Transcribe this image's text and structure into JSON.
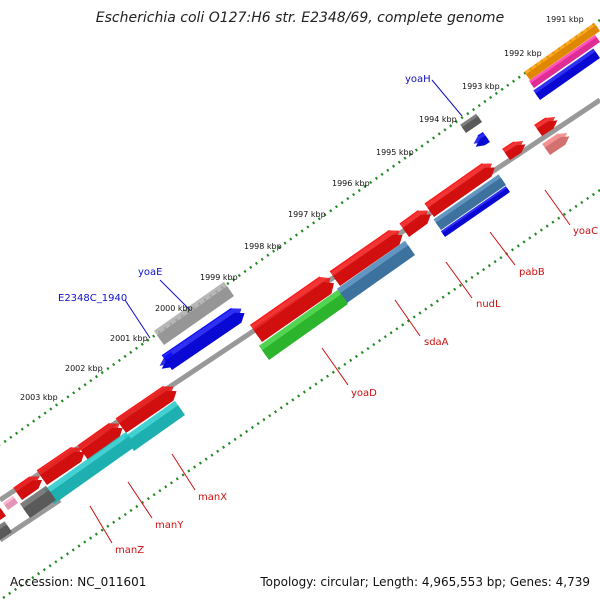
{
  "title": "Escherichia coli O127:H6 str. E2348/69, complete genome",
  "ticks": [
    "1991 kbp",
    "1992 kbp",
    "1993 kbp",
    "1994 kbp",
    "1995 kbp",
    "1996 kbp",
    "1997 kbp",
    "1998 kbp",
    "1999 kbp",
    "2000 kbp",
    "2001 kbp",
    "2002 kbp",
    "2003 kbp"
  ],
  "gene_labels": {
    "yoaH": "yoaH",
    "yoaE": "yoaE",
    "e2348c_1940": "E2348C_1940",
    "yoaC": "yoaC",
    "pabB": "pabB",
    "nudL": "nudL",
    "sdaA": "sdaA",
    "yoaD": "yoaD",
    "manX": "manX",
    "manY": "manY",
    "manZ": "manZ"
  },
  "colors": {
    "plus_strand_label": "#1010cc",
    "minus_strand_label": "#cc1010",
    "red": "#ee1111",
    "blue": "#0a0af0",
    "cyan": "#22c8c8",
    "green": "#33cc33",
    "steel": "#4682b4",
    "gray": "#aaaaaa",
    "darkgray": "#666666",
    "orange": "#ff9900",
    "magenta": "#ff33aa",
    "pink": "#ffaacc",
    "salmon": "#f08080",
    "backbone": "#888888",
    "tick": "#228822"
  },
  "footer": {
    "accession": "Accession: NC_011601",
    "summary": "Topology: circular; Length: 4,965,553 bp; Genes: 4,739"
  }
}
